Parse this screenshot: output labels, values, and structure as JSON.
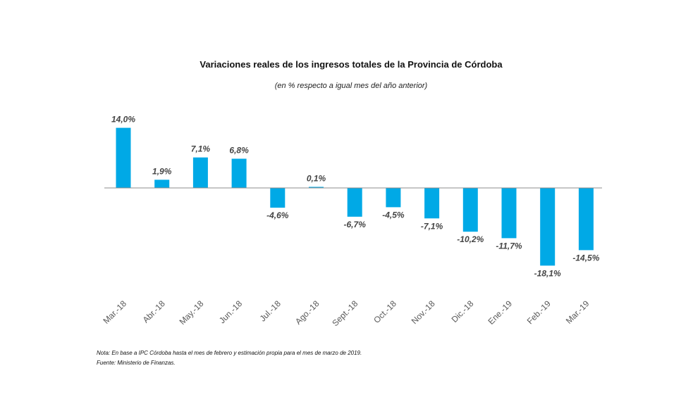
{
  "title": "Variaciones reales de los ingresos totales de la Provincia de Córdoba",
  "subtitle": "(en % respecto  a igual mes del año anterior)",
  "notes": {
    "note": "Nota: En base a IPC Córdoba hasta el mes de febrero y estimación propia para el mes de marzo de 2019.",
    "source": "Fuente: Ministerio de Finanzas."
  },
  "colors": {
    "bar": "#00a9e6",
    "axis": "#8c8c8c"
  },
  "chart_data": {
    "type": "bar",
    "categories": [
      "Mar.-18",
      "Abr.-18",
      "May.-18",
      "Jun.-18",
      "Jul.-18",
      "Ago.-18",
      "Sept.-18",
      "Oct.-18",
      "Nov.-18",
      "Dic.-18",
      "Ene.-19",
      "Feb.-19",
      "Mar.-19"
    ],
    "values": [
      14.0,
      1.9,
      7.1,
      6.8,
      -4.6,
      0.1,
      -6.7,
      -4.5,
      -7.1,
      -10.2,
      -11.7,
      -18.1,
      -14.5
    ],
    "labels": [
      "14,0%",
      "1,9%",
      "7,1%",
      "6,8%",
      "-4,6%",
      "0,1%",
      "-6,7%",
      "-4,5%",
      "-7,1%",
      "-10,2%",
      "-11,7%",
      "-18,1%",
      "-14,5%"
    ],
    "title": "Variaciones reales de los ingresos totales de la Provincia de Córdoba",
    "xlabel": "",
    "ylabel": "",
    "grid": false
  }
}
